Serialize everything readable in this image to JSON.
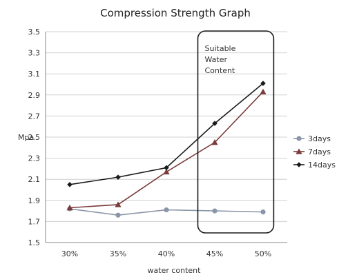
{
  "chart_data": {
    "type": "line",
    "title": "Compression Strength Graph",
    "xlabel": "water content",
    "ylabel": "Mpa",
    "categories": [
      "30%",
      "35%",
      "40%",
      "45%",
      "50%"
    ],
    "ylim": [
      1.5,
      3.5
    ],
    "yticks": [
      "1.5",
      "1.7",
      "1.9",
      "2.1",
      "2.3",
      "2.5",
      "2.7",
      "2.9",
      "3.1",
      "3.3",
      "3.5"
    ],
    "grid": true,
    "legend_position": "right",
    "series": [
      {
        "name": "3days",
        "values": [
          1.82,
          1.76,
          1.81,
          1.8,
          1.79
        ],
        "color": "#8a96a8",
        "marker": "circle"
      },
      {
        "name": "7days",
        "values": [
          1.83,
          1.86,
          2.17,
          2.45,
          2.93
        ],
        "color": "#7a3b3b",
        "marker": "triangle"
      },
      {
        "name": "14days",
        "values": [
          2.05,
          2.12,
          2.21,
          2.63,
          3.01
        ],
        "color": "#1a1a1a",
        "marker": "diamond"
      }
    ],
    "annotation": {
      "lines": [
        "Suitable",
        "Water",
        "Content"
      ],
      "x_range": [
        "45%",
        "50%"
      ]
    }
  }
}
